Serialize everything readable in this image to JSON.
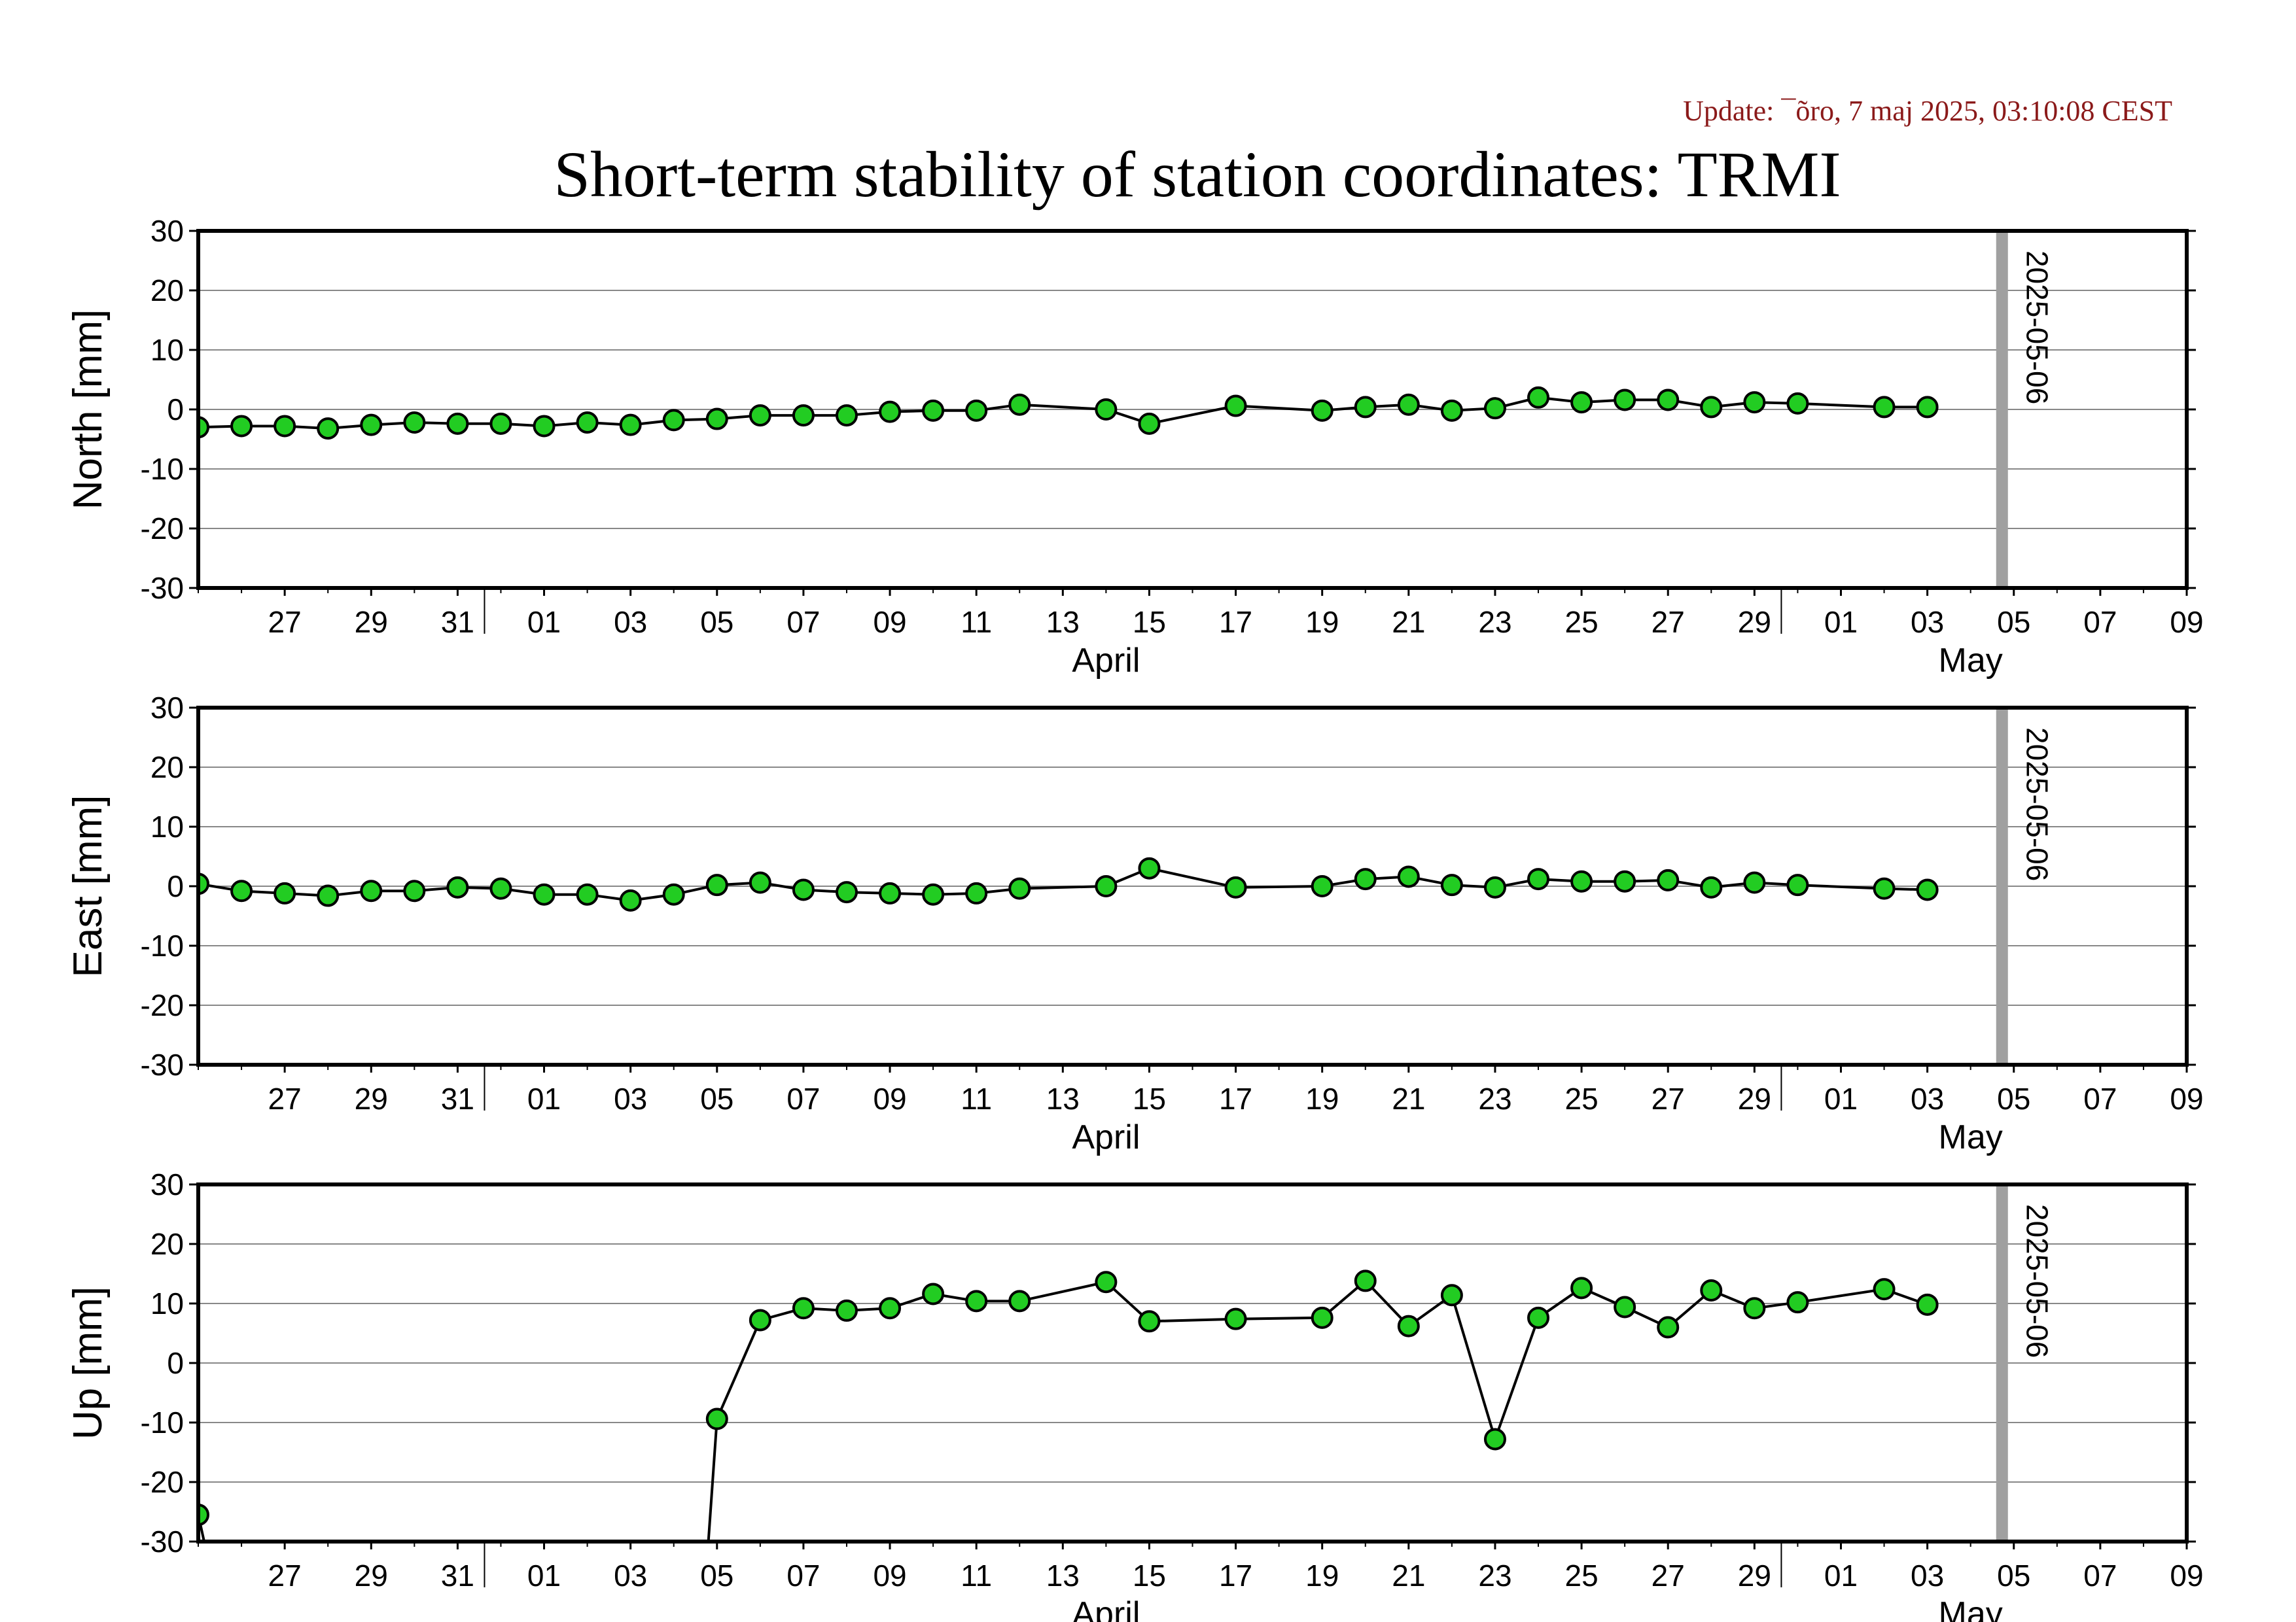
{
  "header": {
    "update": "Update: ¯õro, 7 maj 2025, 03:10:08 CEST",
    "title": "Short-term stability of station coordinates: TRMI"
  },
  "chart_data": [
    {
      "type": "line",
      "ylabel": "North [mm]",
      "ylim": [
        -30,
        30
      ],
      "yticks": [
        30,
        20,
        10,
        0,
        -10,
        -20,
        -30
      ],
      "xlim": [
        "2025-03-25",
        "2025-05-10"
      ],
      "x_tick_labels": [
        "27",
        "29",
        "31",
        "01",
        "03",
        "05",
        "07",
        "09",
        "11",
        "13",
        "15",
        "17",
        "19",
        "21",
        "23",
        "25",
        "27",
        "29",
        "01",
        "03",
        "05",
        "07",
        "09"
      ],
      "month_labels": [
        "April",
        "May"
      ],
      "marker_line": {
        "date": "2025-05-06",
        "label": "2025-05-06"
      },
      "grid": true,
      "series": [
        {
          "color": "#22cc22",
          "points": [
            [
              "2025-03-25",
              -3.0
            ],
            [
              "2025-03-26",
              -2.8
            ],
            [
              "2025-03-27",
              -2.8
            ],
            [
              "2025-03-28",
              -3.2
            ],
            [
              "2025-03-29",
              -2.6
            ],
            [
              "2025-03-30",
              -2.2
            ],
            [
              "2025-03-31",
              -2.4
            ],
            [
              "2025-04-01",
              -2.4
            ],
            [
              "2025-04-02",
              -2.8
            ],
            [
              "2025-04-03",
              -2.2
            ],
            [
              "2025-04-04",
              -2.6
            ],
            [
              "2025-04-05",
              -1.8
            ],
            [
              "2025-04-06",
              -1.6
            ],
            [
              "2025-04-07",
              -1.0
            ],
            [
              "2025-04-08",
              -1.0
            ],
            [
              "2025-04-09",
              -1.0
            ],
            [
              "2025-04-10",
              -0.4
            ],
            [
              "2025-04-11",
              -0.2
            ],
            [
              "2025-04-12",
              -0.2
            ],
            [
              "2025-04-13",
              0.8
            ],
            [
              "2025-04-15",
              0.0
            ],
            [
              "2025-04-16",
              -2.4
            ],
            [
              "2025-04-18",
              0.6
            ],
            [
              "2025-04-20",
              -0.2
            ],
            [
              "2025-04-21",
              0.4
            ],
            [
              "2025-04-22",
              0.8
            ],
            [
              "2025-04-23",
              -0.2
            ],
            [
              "2025-04-24",
              0.2
            ],
            [
              "2025-04-25",
              2.0
            ],
            [
              "2025-04-26",
              1.2
            ],
            [
              "2025-04-27",
              1.6
            ],
            [
              "2025-04-28",
              1.6
            ],
            [
              "2025-04-29",
              0.4
            ],
            [
              "2025-04-30",
              1.2
            ],
            [
              "2025-05-01",
              1.0
            ],
            [
              "2025-05-03",
              0.4
            ],
            [
              "2025-05-04",
              0.4
            ]
          ]
        }
      ]
    },
    {
      "type": "line",
      "ylabel": "East [mm]",
      "ylim": [
        -30,
        30
      ],
      "yticks": [
        30,
        20,
        10,
        0,
        -10,
        -20,
        -30
      ],
      "xlim": [
        "2025-03-25",
        "2025-05-10"
      ],
      "x_tick_labels": [
        "27",
        "29",
        "31",
        "01",
        "03",
        "05",
        "07",
        "09",
        "11",
        "13",
        "15",
        "17",
        "19",
        "21",
        "23",
        "25",
        "27",
        "29",
        "01",
        "03",
        "05",
        "07",
        "09"
      ],
      "month_labels": [
        "April",
        "May"
      ],
      "marker_line": {
        "date": "2025-05-06",
        "label": "2025-05-06"
      },
      "grid": true,
      "series": [
        {
          "color": "#22cc22",
          "points": [
            [
              "2025-03-25",
              0.4
            ],
            [
              "2025-03-26",
              -0.8
            ],
            [
              "2025-03-27",
              -1.2
            ],
            [
              "2025-03-28",
              -1.6
            ],
            [
              "2025-03-29",
              -0.8
            ],
            [
              "2025-03-30",
              -0.8
            ],
            [
              "2025-03-31",
              -0.2
            ],
            [
              "2025-04-01",
              -0.4
            ],
            [
              "2025-04-02",
              -1.4
            ],
            [
              "2025-04-03",
              -1.4
            ],
            [
              "2025-04-04",
              -2.4
            ],
            [
              "2025-04-05",
              -1.4
            ],
            [
              "2025-04-06",
              0.2
            ],
            [
              "2025-04-07",
              0.6
            ],
            [
              "2025-04-08",
              -0.6
            ],
            [
              "2025-04-09",
              -1.0
            ],
            [
              "2025-04-10",
              -1.2
            ],
            [
              "2025-04-11",
              -1.4
            ],
            [
              "2025-04-12",
              -1.2
            ],
            [
              "2025-04-13",
              -0.4
            ],
            [
              "2025-04-15",
              0.0
            ],
            [
              "2025-04-16",
              3.0
            ],
            [
              "2025-04-18",
              -0.2
            ],
            [
              "2025-04-20",
              0.0
            ],
            [
              "2025-04-21",
              1.2
            ],
            [
              "2025-04-22",
              1.6
            ],
            [
              "2025-04-23",
              0.2
            ],
            [
              "2025-04-24",
              -0.2
            ],
            [
              "2025-04-25",
              1.2
            ],
            [
              "2025-04-26",
              0.8
            ],
            [
              "2025-04-27",
              0.8
            ],
            [
              "2025-04-28",
              1.0
            ],
            [
              "2025-04-29",
              -0.2
            ],
            [
              "2025-04-30",
              0.6
            ],
            [
              "2025-05-01",
              0.2
            ],
            [
              "2025-05-03",
              -0.4
            ],
            [
              "2025-05-04",
              -0.6
            ]
          ]
        }
      ]
    },
    {
      "type": "line",
      "ylabel": "Up [mm]",
      "ylim": [
        -30,
        30
      ],
      "yticks": [
        30,
        20,
        10,
        0,
        -10,
        -20,
        -30
      ],
      "xlim": [
        "2025-03-25",
        "2025-05-10"
      ],
      "x_tick_labels": [
        "27",
        "29",
        "31",
        "01",
        "03",
        "05",
        "07",
        "09",
        "11",
        "13",
        "15",
        "17",
        "19",
        "21",
        "23",
        "25",
        "27",
        "29",
        "01",
        "03",
        "05",
        "07",
        "09"
      ],
      "month_labels": [
        "April",
        "May"
      ],
      "marker_line": {
        "date": "2025-05-06",
        "label": "2025-05-06"
      },
      "grid": true,
      "series": [
        {
          "color": "#22cc22",
          "points": [
            [
              "2025-03-25",
              -25.5
            ],
            [
              "2025-03-25T04",
              -31.0
            ]
          ]
        },
        {
          "color": "#22cc22",
          "points": [
            [
              "2025-04-05T19",
              -31.0
            ],
            [
              "2025-04-06",
              -9.4
            ],
            [
              "2025-04-07",
              7.2
            ],
            [
              "2025-04-08",
              9.2
            ],
            [
              "2025-04-09",
              8.8
            ],
            [
              "2025-04-10",
              9.2
            ],
            [
              "2025-04-11",
              11.6
            ],
            [
              "2025-04-12",
              10.4
            ],
            [
              "2025-04-13",
              10.4
            ],
            [
              "2025-04-15",
              13.6
            ],
            [
              "2025-04-16",
              7.0
            ],
            [
              "2025-04-18",
              7.4
            ],
            [
              "2025-04-20",
              7.6
            ],
            [
              "2025-04-21",
              13.8
            ],
            [
              "2025-04-22",
              6.2
            ],
            [
              "2025-04-23",
              11.4
            ],
            [
              "2025-04-24",
              -12.8
            ],
            [
              "2025-04-25",
              7.6
            ],
            [
              "2025-04-26",
              12.6
            ],
            [
              "2025-04-27",
              9.4
            ],
            [
              "2025-04-28",
              6.0
            ],
            [
              "2025-04-29",
              12.2
            ],
            [
              "2025-04-30",
              9.2
            ],
            [
              "2025-05-01",
              10.2
            ],
            [
              "2025-05-03",
              12.4
            ],
            [
              "2025-05-04",
              9.8
            ]
          ]
        }
      ]
    }
  ]
}
